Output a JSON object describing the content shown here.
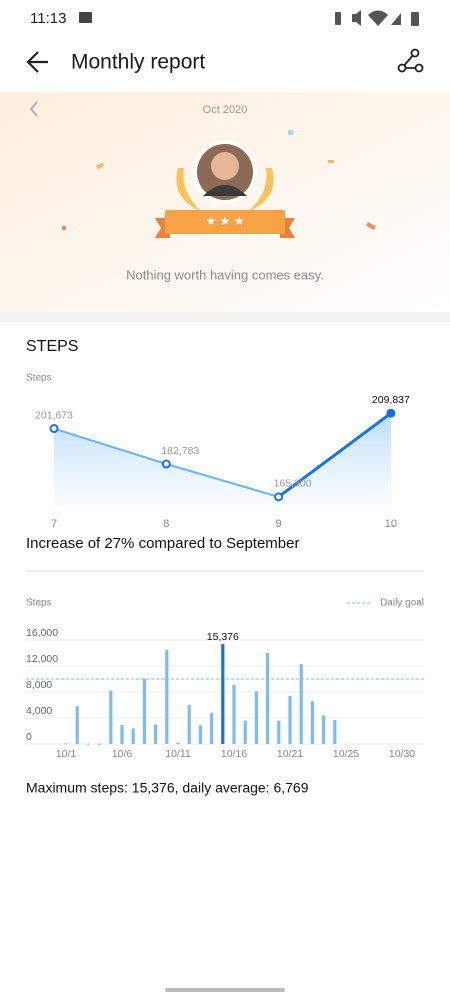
{
  "status_bar": {
    "time": "11:13"
  },
  "header": {
    "title": "Monthly report"
  },
  "banner": {
    "month": "Oct 2020",
    "quote": "Nothing worth having comes easy."
  },
  "steps": {
    "heading": "STEPS"
  },
  "chart_data": [
    {
      "type": "line",
      "y_label": "Steps",
      "categories": [
        "7",
        "8",
        "9",
        "10"
      ],
      "values": [
        201673,
        182783,
        165300,
        209837
      ],
      "value_labels": [
        "201,673",
        "182,783",
        "165,300",
        "209,837"
      ],
      "ylim": [
        160000,
        215000
      ],
      "color": "#6db3ee",
      "highlight_color": "#1a73d9",
      "caption": "Increase of 27% compared to September"
    },
    {
      "type": "bar",
      "y_label": "Steps",
      "legend": "Daily goal",
      "goal": 10000,
      "categories": [
        "10/1",
        null,
        null,
        null,
        null,
        "10/6",
        null,
        null,
        null,
        null,
        "10/11",
        null,
        null,
        null,
        null,
        "10/16",
        null,
        null,
        null,
        null,
        "10/21",
        null,
        null,
        null,
        null,
        "10/25",
        null,
        null,
        null,
        null,
        "10/30"
      ],
      "values": [
        100,
        5800,
        50,
        50,
        8200,
        2900,
        2400,
        10000,
        3000,
        14500,
        200,
        6000,
        2900,
        4800,
        15376,
        9100,
        3600,
        8100,
        14000,
        3600,
        7400,
        12300,
        6600,
        4400,
        3700,
        null,
        null,
        null,
        null,
        null,
        null
      ],
      "value_labels": [
        null,
        null,
        null,
        null,
        null,
        null,
        null,
        null,
        null,
        null,
        null,
        null,
        null,
        null,
        "15,376",
        null,
        null,
        null,
        null,
        null,
        null,
        null,
        null,
        null,
        null,
        null,
        null,
        null,
        null,
        null,
        null
      ],
      "ylim": [
        0,
        17000
      ],
      "yticks": [
        0,
        {
          "value": 4000,
          "label": "4,000"
        },
        {
          "value": 8000,
          "label": "8,000"
        },
        {
          "value": 12000,
          "label": "12,000"
        },
        {
          "value": 16000,
          "label": "16,000"
        }
      ],
      "grid": true,
      "color": "#7dbcf0",
      "highlight_color": "#1a73d9",
      "caption": "Maximum steps: 15,376, daily average: 6,769"
    }
  ]
}
